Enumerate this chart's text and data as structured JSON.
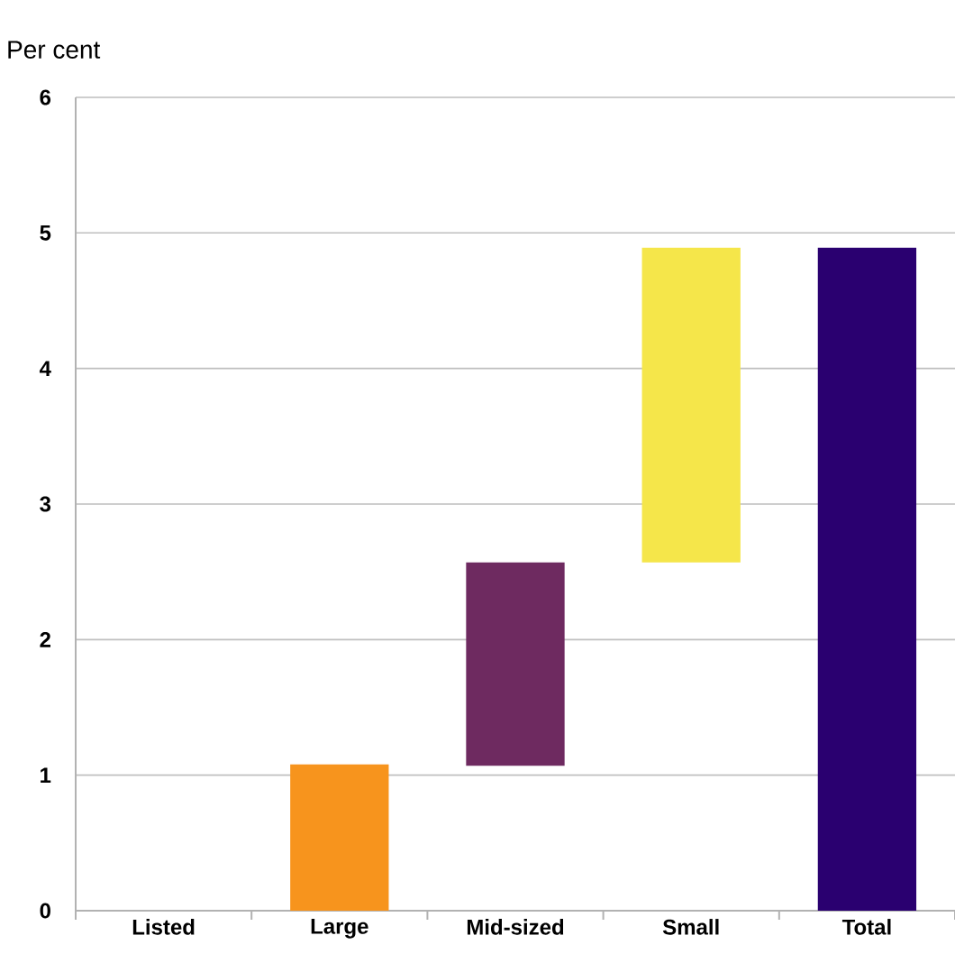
{
  "chart_data": {
    "type": "bar",
    "ylabel": "Per cent",
    "categories": [
      "Listed",
      "Large",
      "Mid-sized",
      "Small",
      "Total"
    ],
    "values": [
      null,
      1.08,
      1.5,
      2.32,
      4.89
    ],
    "base": [
      null,
      0,
      1.07,
      2.57,
      0
    ],
    "colors": [
      "#f7941d",
      "#f7941d",
      "#6e2a60",
      "#f5e64a",
      "#2a0070"
    ],
    "ylim": [
      0,
      6
    ],
    "yticks": [
      0,
      1,
      2,
      3,
      4,
      5,
      6
    ],
    "grid": "y"
  }
}
